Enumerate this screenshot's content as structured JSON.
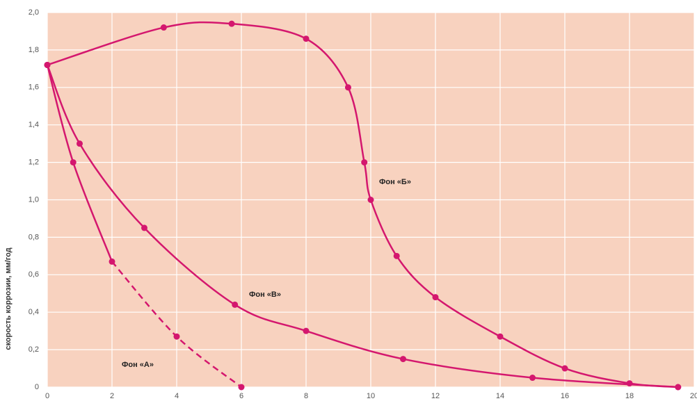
{
  "chart_data": {
    "type": "line",
    "ylabel": "скорость коррозии, мм/год",
    "xlim": [
      0,
      20
    ],
    "ylim": [
      0,
      2
    ],
    "xticks": [
      0,
      2,
      4,
      6,
      8,
      10,
      12,
      14,
      16,
      18,
      20
    ],
    "yticks": [
      0,
      {
        "value": 0.2,
        "label": "0,2"
      },
      {
        "value": 0.4,
        "label": "0,4"
      },
      {
        "value": 0.6,
        "label": "0,6"
      },
      {
        "value": 0.8,
        "label": "0,8"
      },
      {
        "value": 1.0,
        "label": "1,0"
      },
      {
        "value": 1.2,
        "label": "1,2"
      },
      {
        "value": 1.4,
        "label": "1,4"
      },
      {
        "value": 1.6,
        "label": "1,6"
      },
      {
        "value": 1.8,
        "label": "1,8"
      },
      {
        "value": 2.0,
        "label": "2,0"
      }
    ],
    "grid": true,
    "series": [
      {
        "name": "Фон «Б»",
        "color": "#d4176e",
        "x": [
          0,
          3.6,
          5.7,
          8,
          9.3,
          9.8,
          10,
          10.8,
          12,
          14,
          16,
          18,
          19.5
        ],
        "values": [
          1.72,
          1.92,
          1.94,
          1.86,
          1.6,
          1.2,
          1.0,
          0.7,
          0.48,
          0.27,
          0.1,
          0.02,
          0
        ]
      },
      {
        "name": "Фон «В»",
        "color": "#d4176e",
        "x": [
          0,
          1,
          3,
          5.8,
          8,
          11,
          15,
          19.5
        ],
        "values": [
          1.72,
          1.3,
          0.85,
          0.44,
          0.3,
          0.15,
          0.05,
          0
        ]
      },
      {
        "name": "Фон «А»",
        "color": "#d4176e",
        "dashed_from_x": 2,
        "x": [
          0,
          0.8,
          2,
          4,
          6
        ],
        "values": [
          1.72,
          1.2,
          0.67,
          0.27,
          0
        ]
      }
    ]
  }
}
